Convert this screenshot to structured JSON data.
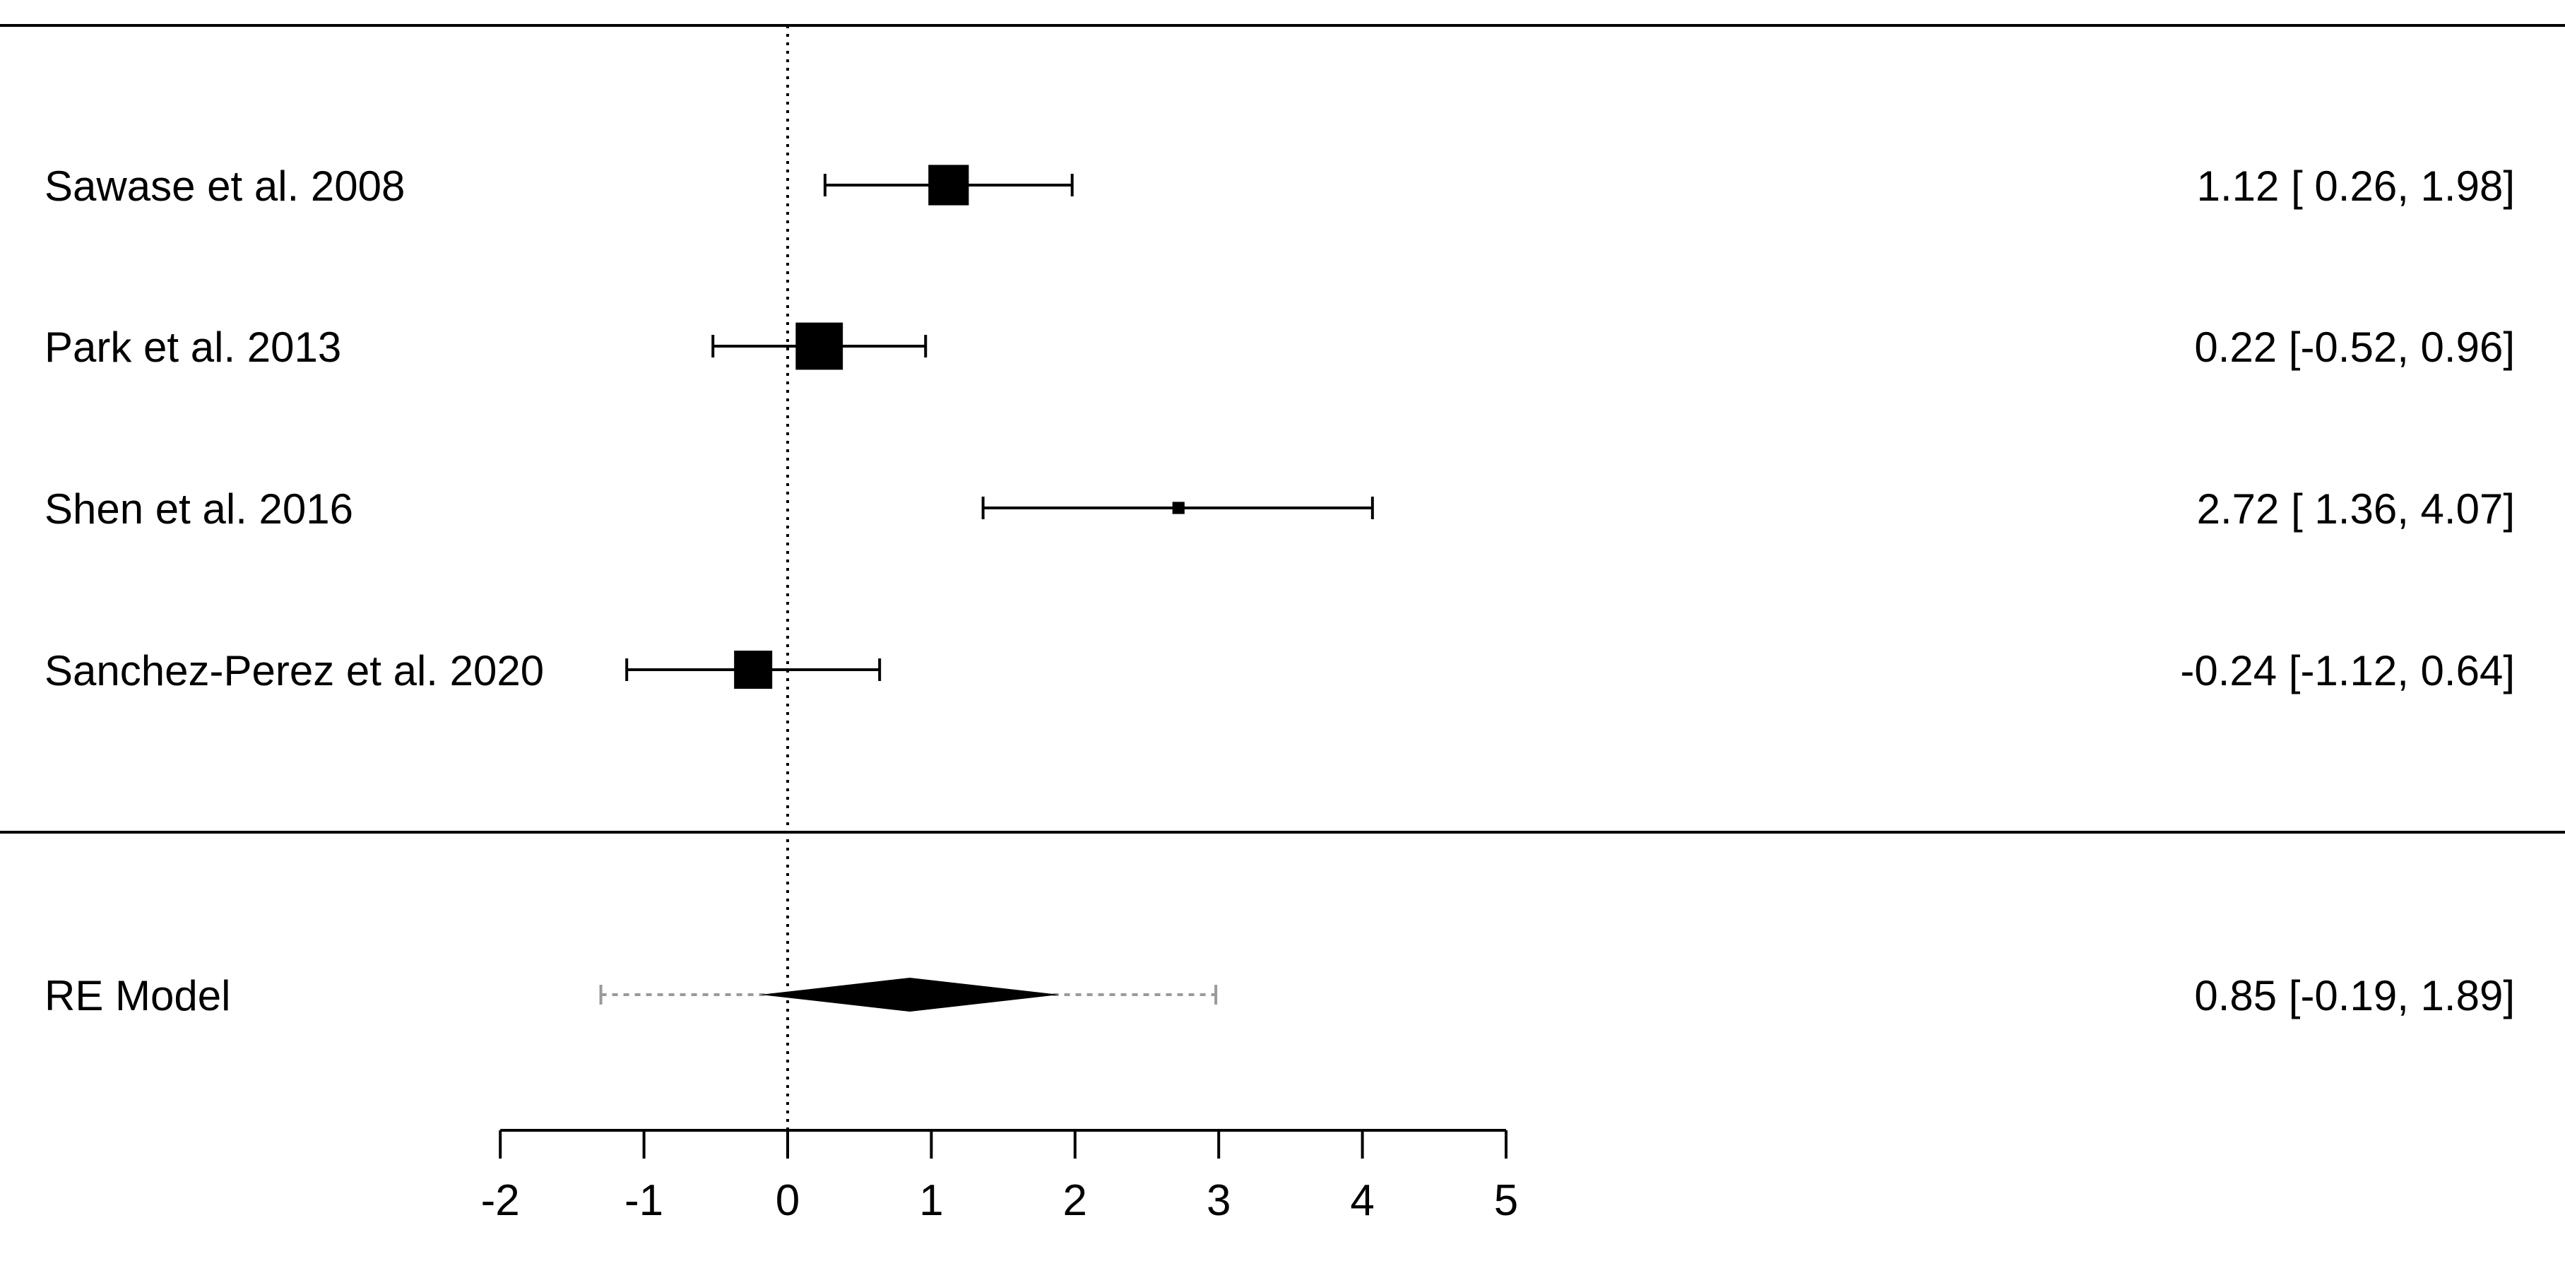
{
  "chart_data": {
    "type": "forest",
    "x_ticks": [
      -2,
      -1,
      0,
      1,
      2,
      3,
      4,
      5
    ],
    "xlim": [
      -2,
      5
    ],
    "reference_line": 0,
    "studies": [
      {
        "label": "Sawase et al. 2008",
        "estimate": 1.12,
        "ci_low": 0.26,
        "ci_high": 1.98,
        "weight": 0.27,
        "text": "1.12 [ 0.26, 1.98]"
      },
      {
        "label": "Park et al. 2013",
        "estimate": 0.22,
        "ci_low": -0.52,
        "ci_high": 0.96,
        "weight": 0.33,
        "text": "0.22 [-0.52, 0.96]"
      },
      {
        "label": "Shen et al. 2016",
        "estimate": 2.72,
        "ci_low": 1.36,
        "ci_high": 4.07,
        "weight": 0.02,
        "text": "2.72 [ 1.36, 4.07]"
      },
      {
        "label": "Sanchez-Perez et al. 2020",
        "estimate": -0.24,
        "ci_low": -1.12,
        "ci_high": 0.64,
        "weight": 0.25,
        "text": "-0.24 [-1.12, 0.64]"
      }
    ],
    "summary": {
      "label": "RE Model",
      "estimate": 0.85,
      "ci_low": -0.19,
      "ci_high": 1.89,
      "pi_low": -1.3,
      "pi_high": 2.98,
      "text": "0.85 [-0.19, 1.89]"
    },
    "colors": {
      "ink": "#000000",
      "prediction_interval": "#9a9a9a"
    }
  }
}
